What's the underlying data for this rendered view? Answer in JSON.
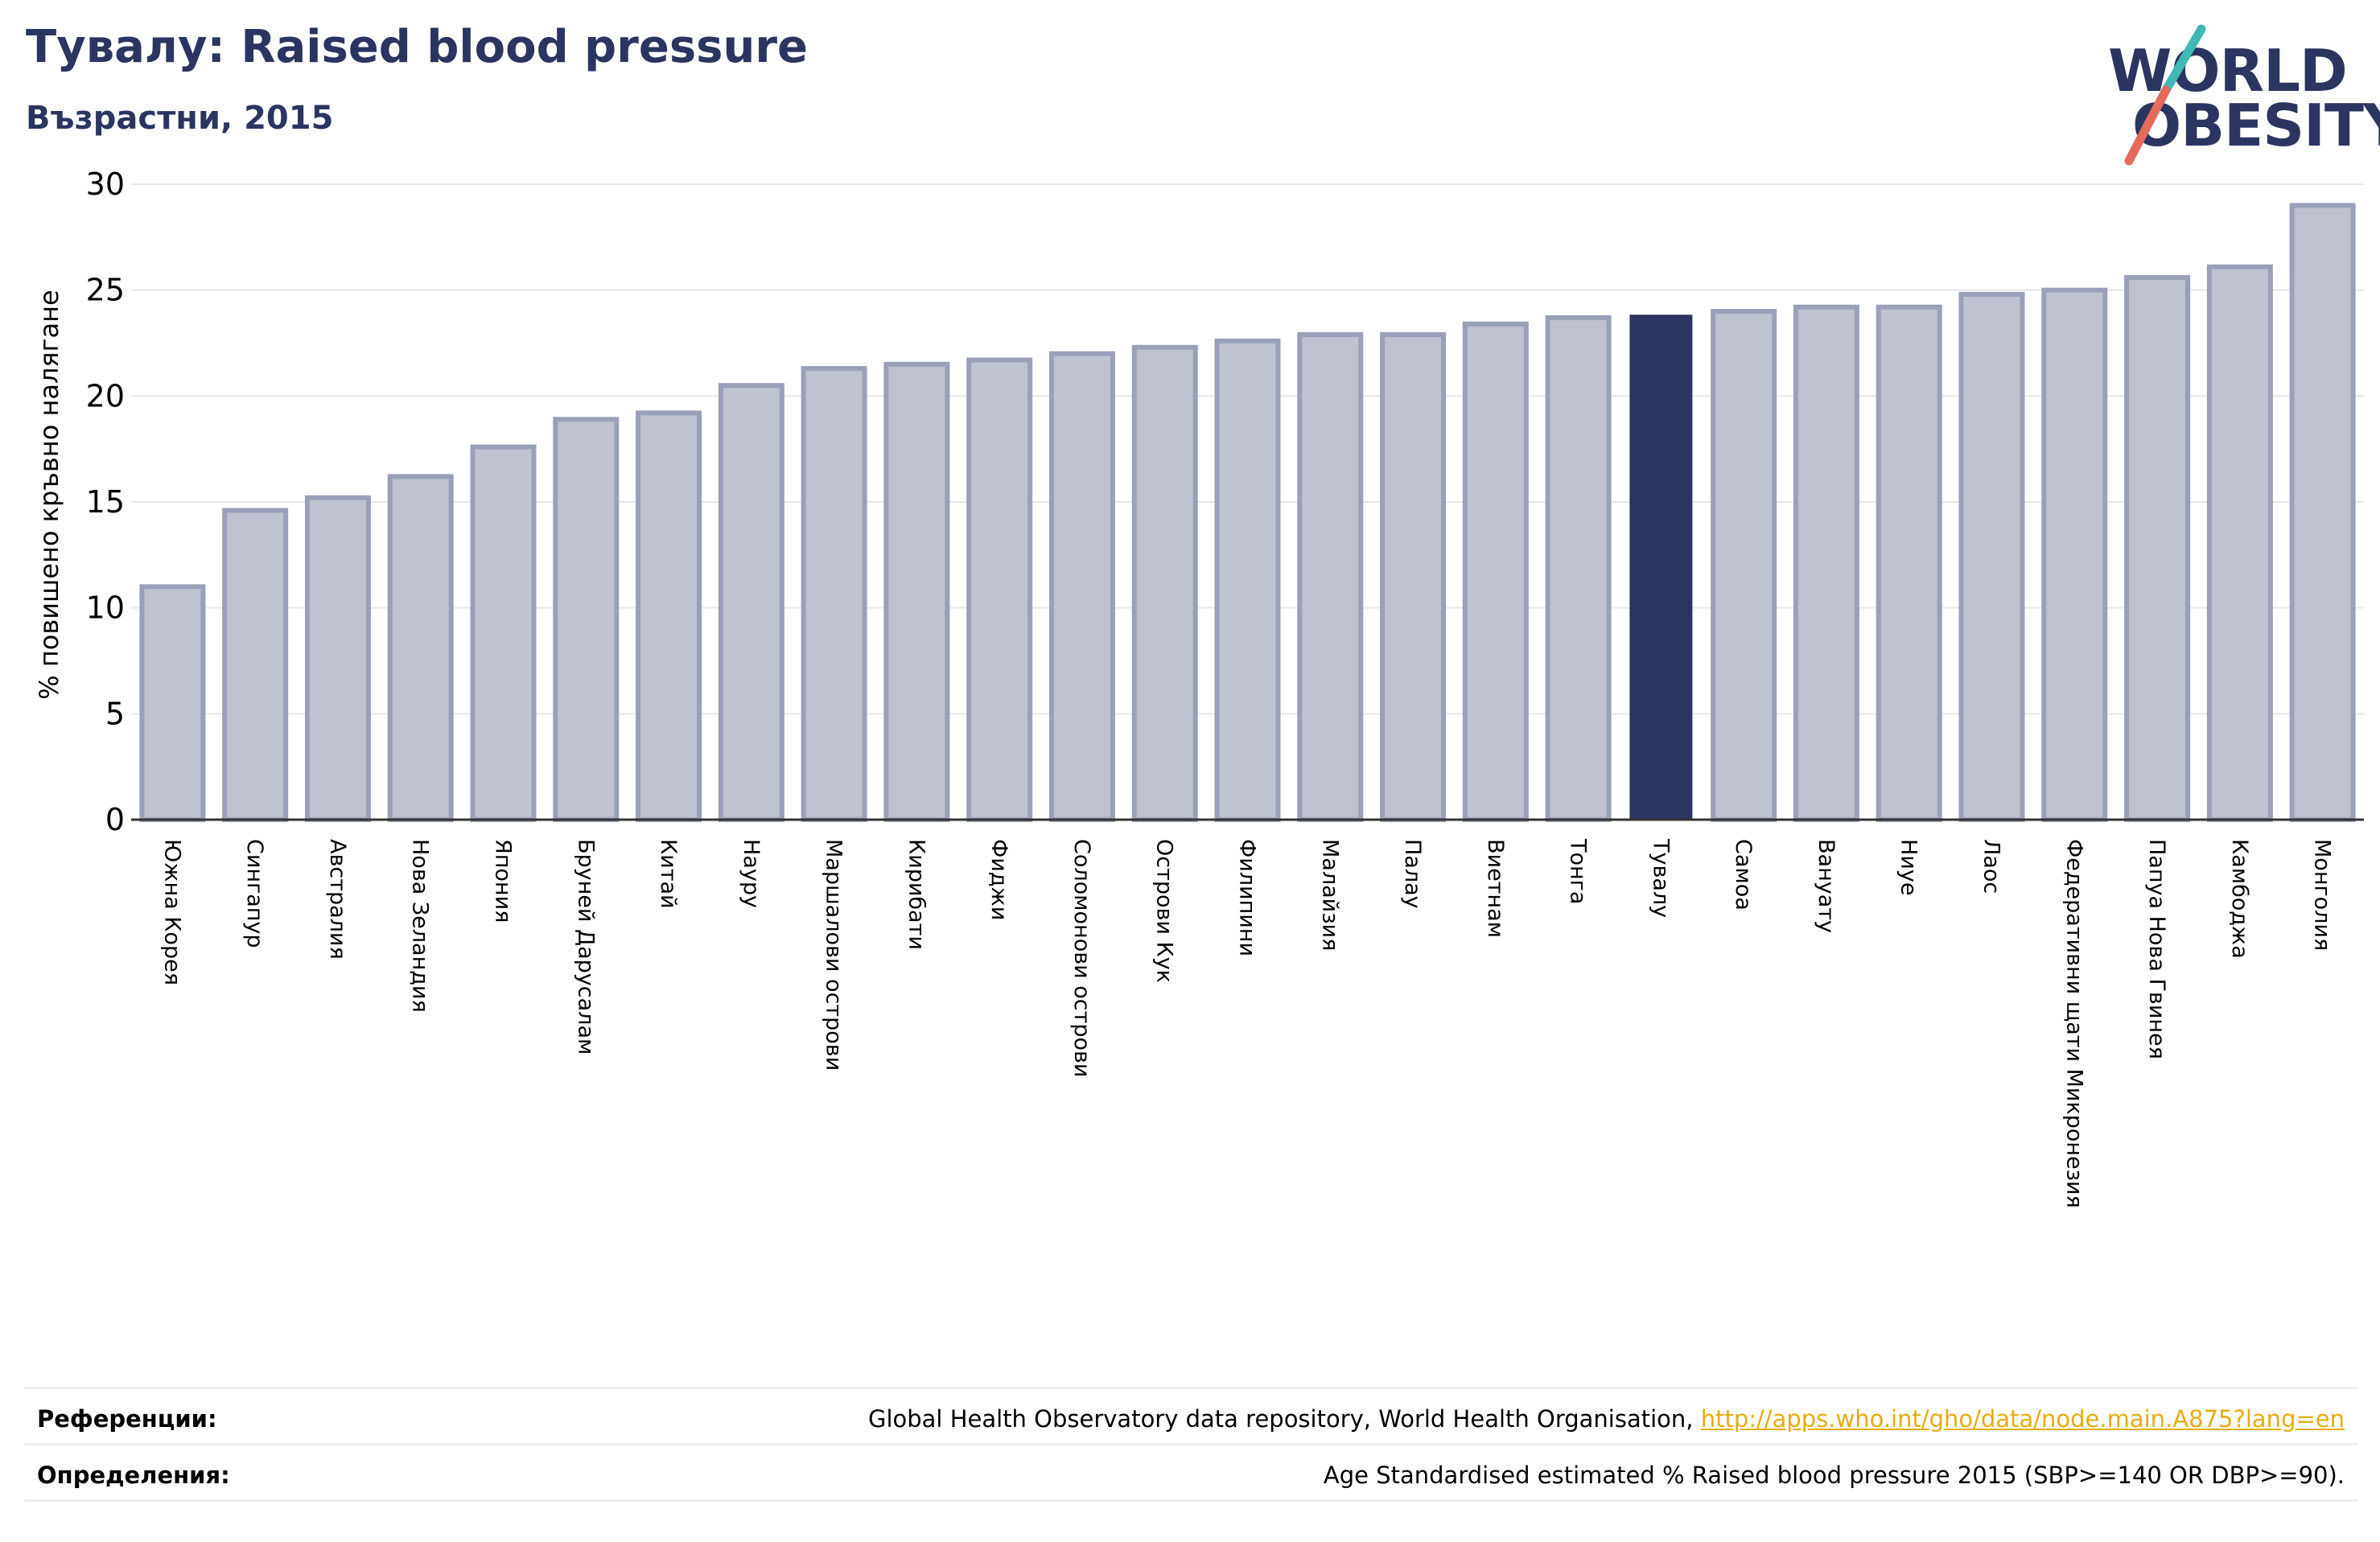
{
  "header": {
    "title": "Тувалу: Raised blood pressure",
    "subtitle": "Възрастни, 2015"
  },
  "logo": {
    "line1": "WORLD",
    "line2": "OBESITY",
    "colors": {
      "text": "#2c3560",
      "slash_top": "#3fb8b6",
      "slash_bottom": "#e46a5a"
    }
  },
  "colors": {
    "bar": "#bfc2cf",
    "bar_border": "#9aa0b8",
    "highlight": "#2b3560",
    "grid": "#e6e6e6",
    "axis": "#333333",
    "link": "#e5ac10"
  },
  "chart_data": {
    "type": "bar",
    "title": "Тувалу: Raised blood pressure",
    "subtitle": "Възрастни, 2015",
    "xlabel": "",
    "ylabel": "% повишено кръвно налягане",
    "ylim": [
      0,
      30
    ],
    "yticks": [
      0,
      5,
      10,
      15,
      20,
      25,
      30
    ],
    "grid": true,
    "highlight_category": "Тувалу",
    "categories": [
      "Южна Корея",
      "Сингапур",
      "Австралия",
      "Нова Зеландия",
      "Япония",
      "Бруней Дарусалам",
      "Китай",
      "Науру",
      "Маршалови острови",
      "Кирибати",
      "Фиджи",
      "Соломонови острови",
      "Острови Кук",
      "Филипини",
      "Малайзия",
      "Палау",
      "Виетнам",
      "Тонга",
      "Тувалу",
      "Самоа",
      "Вануату",
      "Ниуе",
      "Лаос",
      "Федеративни щати Микронезия",
      "Папуа Нова Гвинея",
      "Камбоджа",
      "Монголия"
    ],
    "values": [
      11.0,
      14.6,
      15.2,
      16.2,
      17.6,
      18.9,
      19.2,
      20.5,
      21.3,
      21.5,
      21.7,
      22.0,
      22.3,
      22.6,
      22.9,
      22.9,
      23.4,
      23.7,
      23.8,
      24.0,
      24.2,
      24.2,
      24.8,
      25.0,
      25.6,
      26.1,
      29.0
    ]
  },
  "footer": {
    "references_label": "Референции:",
    "references_text": "Global Health Observatory data repository, World Health Organisation,",
    "references_link": "http://apps.who.int/gho/data/node.main.A875?lang=en",
    "definitions_label": "Определения:",
    "definitions_text": "Age Standardised estimated % Raised blood pressure 2015 (SBP>=140 OR DBP>=90)."
  }
}
